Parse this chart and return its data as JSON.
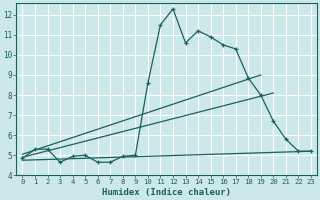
{
  "xlabel": "Humidex (Indice chaleur)",
  "bg_color": "#cce8e8",
  "grid_color": "#ffffff",
  "line_color": "#1a6060",
  "xlim": [
    -0.5,
    23.5
  ],
  "ylim": [
    4,
    12.6
  ],
  "yticks": [
    4,
    5,
    6,
    7,
    8,
    9,
    10,
    11,
    12
  ],
  "xticks": [
    0,
    1,
    2,
    3,
    4,
    5,
    6,
    7,
    8,
    9,
    10,
    11,
    12,
    13,
    14,
    15,
    16,
    17,
    18,
    19,
    20,
    21,
    22,
    23
  ],
  "main_x": [
    0,
    1,
    2,
    3,
    4,
    5,
    6,
    7,
    8,
    9,
    10,
    11,
    12,
    13,
    14,
    15,
    16,
    17,
    18,
    19,
    20,
    21,
    22,
    23
  ],
  "main_y": [
    4.85,
    5.3,
    5.3,
    4.65,
    4.95,
    5.0,
    4.65,
    4.65,
    4.95,
    5.0,
    8.6,
    11.5,
    12.3,
    10.6,
    11.2,
    10.9,
    10.5,
    10.3,
    8.85,
    8.0,
    6.7,
    5.8,
    5.2,
    5.2
  ],
  "line1_x": [
    0,
    19
  ],
  "line1_y": [
    5.05,
    9.0
  ],
  "line2_x": [
    0,
    20
  ],
  "line2_y": [
    4.9,
    8.1
  ],
  "line3_x": [
    0,
    23
  ],
  "line3_y": [
    4.75,
    5.2
  ]
}
